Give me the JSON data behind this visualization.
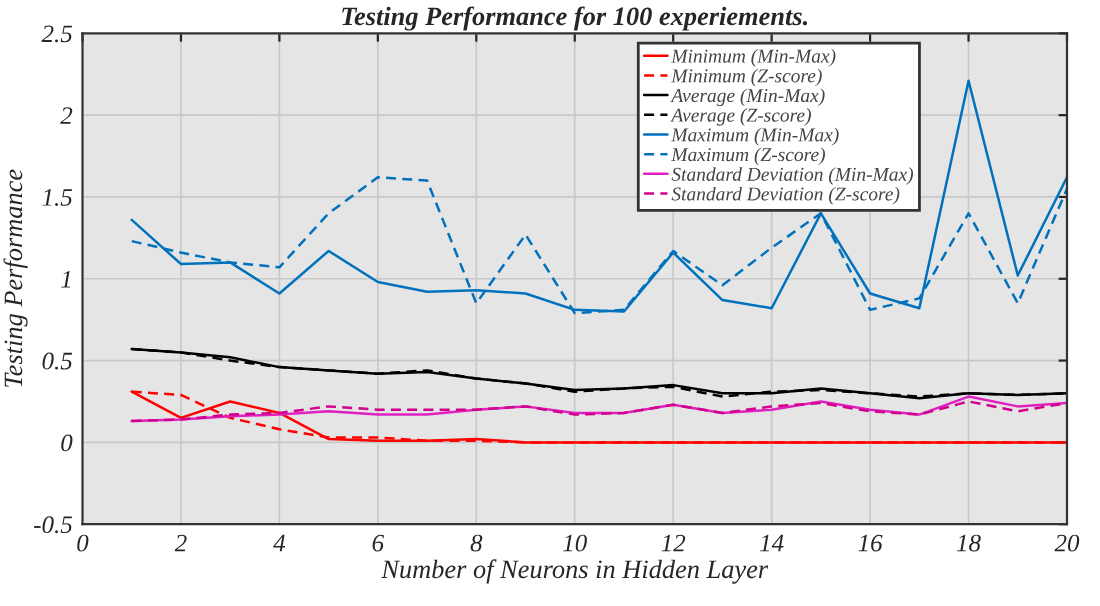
{
  "chart_data": {
    "type": "line",
    "title": "Testing Performance for 100 experiements.",
    "xlabel": "Number of Neurons in Hidden Layer",
    "ylabel": "Testing Performance",
    "x": [
      1,
      2,
      3,
      4,
      5,
      6,
      7,
      8,
      9,
      10,
      11,
      12,
      13,
      14,
      15,
      16,
      17,
      18,
      19,
      20
    ],
    "xlim": [
      0,
      20
    ],
    "xticks": [
      0,
      2,
      4,
      6,
      8,
      10,
      12,
      14,
      16,
      18,
      20
    ],
    "ylim": [
      -0.5,
      2.5
    ],
    "yticks": [
      -0.5,
      0,
      0.5,
      1,
      1.5,
      2,
      2.5
    ],
    "grid": true,
    "legend": "top right",
    "marker": "none",
    "series": [
      {
        "name": "Minimum (Min-Max)",
        "color": "#ff0000",
        "line_style": "solid",
        "values": [
          0.31,
          0.15,
          0.25,
          0.18,
          0.02,
          0.01,
          0.01,
          0.02,
          0.0,
          0.0,
          0.0,
          0.0,
          0.0,
          0.0,
          0.0,
          0.0,
          0.0,
          0.0,
          0.0,
          0.0
        ]
      },
      {
        "name": "Minimum (Z-score)",
        "color": "#ff0000",
        "line_style": "dashed",
        "values": [
          0.31,
          0.29,
          0.15,
          0.08,
          0.03,
          0.03,
          0.01,
          0.01,
          0.0,
          0.0,
          0.0,
          0.0,
          0.0,
          0.0,
          0.0,
          0.0,
          0.0,
          0.0,
          0.0,
          0.0
        ]
      },
      {
        "name": "Average (Min-Max)",
        "color": "#000000",
        "line_style": "solid",
        "values": [
          0.57,
          0.55,
          0.52,
          0.46,
          0.44,
          0.42,
          0.43,
          0.39,
          0.36,
          0.32,
          0.33,
          0.35,
          0.3,
          0.3,
          0.33,
          0.3,
          0.27,
          0.3,
          0.29,
          0.3
        ]
      },
      {
        "name": "Average (Z-score)",
        "color": "#000000",
        "line_style": "dashed",
        "values": [
          0.57,
          0.55,
          0.5,
          0.46,
          0.44,
          0.42,
          0.44,
          0.39,
          0.36,
          0.31,
          0.33,
          0.34,
          0.28,
          0.31,
          0.32,
          0.3,
          0.28,
          0.3,
          0.29,
          0.3
        ]
      },
      {
        "name": "Maximum (Min-Max)",
        "color": "#0072bd",
        "line_style": "solid",
        "values": [
          1.36,
          1.09,
          1.1,
          0.91,
          1.17,
          0.98,
          0.92,
          0.93,
          0.91,
          0.81,
          0.8,
          1.16,
          0.87,
          0.82,
          1.4,
          0.91,
          0.82,
          2.21,
          1.02,
          1.62
        ]
      },
      {
        "name": "Maximum (Z-score)",
        "color": "#0072bd",
        "line_style": "dashed",
        "values": [
          1.23,
          1.16,
          1.1,
          1.07,
          1.4,
          1.62,
          1.6,
          0.85,
          1.27,
          0.79,
          0.81,
          1.17,
          0.96,
          1.19,
          1.4,
          0.81,
          0.88,
          1.4,
          0.85,
          1.55
        ]
      },
      {
        "name": "Standard Deviation (Min-Max)",
        "color": "#e020c0",
        "line_style": "solid",
        "values": [
          0.13,
          0.14,
          0.16,
          0.17,
          0.19,
          0.17,
          0.17,
          0.2,
          0.22,
          0.18,
          0.18,
          0.23,
          0.18,
          0.2,
          0.25,
          0.2,
          0.17,
          0.28,
          0.22,
          0.24
        ]
      },
      {
        "name": "Standard Deviation (Z-score)",
        "color": "#d0008c",
        "line_style": "dashed",
        "values": [
          0.13,
          0.14,
          0.17,
          0.18,
          0.22,
          0.2,
          0.2,
          0.2,
          0.22,
          0.17,
          0.18,
          0.23,
          0.18,
          0.22,
          0.24,
          0.19,
          0.17,
          0.25,
          0.19,
          0.24
        ]
      }
    ]
  }
}
